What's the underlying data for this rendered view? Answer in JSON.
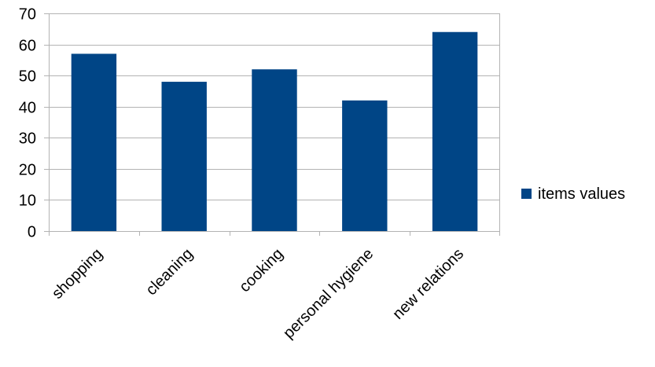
{
  "chart_data": {
    "type": "bar",
    "categories": [
      "shopping",
      "cleaning",
      "cooking",
      "personal hygiene",
      "new relations"
    ],
    "series": [
      {
        "name": "items values",
        "values": [
          57,
          48,
          52,
          42,
          64
        ],
        "color": "#004586"
      }
    ],
    "title": "",
    "xlabel": "",
    "ylabel": "",
    "ylim": [
      0,
      70
    ],
    "yticks": [
      0,
      10,
      20,
      30,
      40,
      50,
      60,
      70
    ],
    "grid": true,
    "legend": "right"
  }
}
